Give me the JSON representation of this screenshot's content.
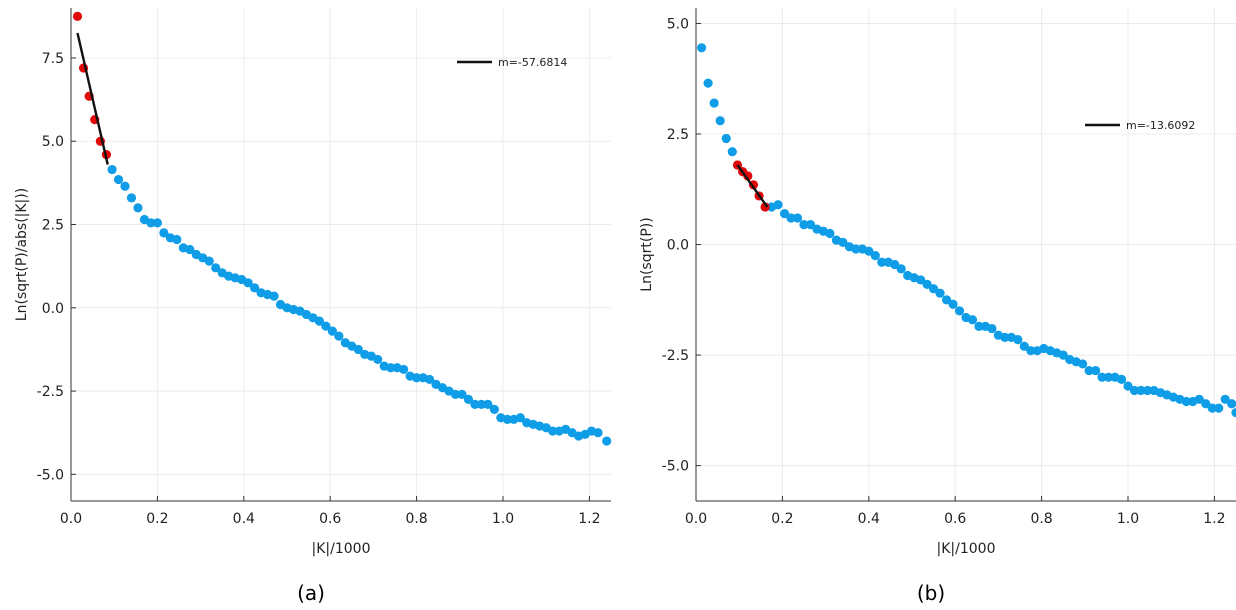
{
  "chart_data": [
    {
      "type": "scatter",
      "panel_caption": "(a)",
      "xlabel": "|K|/1000",
      "ylabel": "Ln(sqrt(P)/abs(|K|))",
      "xlim": [
        0.0,
        1.25
      ],
      "ylim": [
        -5.8,
        9.0
      ],
      "xticks": [
        0.0,
        0.2,
        0.4,
        0.6,
        0.8,
        1.0,
        1.2
      ],
      "xtick_labels": [
        "0.0",
        "0.2",
        "0.4",
        "0.6",
        "0.8",
        "1.0",
        "1.2"
      ],
      "yticks": [
        -5.0,
        -2.5,
        0.0,
        2.5,
        5.0,
        7.5
      ],
      "ytick_labels": [
        "-5.0",
        "-2.5",
        "0.0",
        "2.5",
        "5.0",
        "7.5"
      ],
      "grid": true,
      "legend_position": "top-right",
      "colors": {
        "blue": "#0f9de8",
        "red": "#e0090a",
        "fit": "#111111"
      },
      "series": [
        {
          "role": "blue",
          "points": [
            [
              0.095,
              4.15
            ],
            [
              0.11,
              3.85
            ],
            [
              0.125,
              3.65
            ],
            [
              0.14,
              3.3
            ],
            [
              0.155,
              3.0
            ],
            [
              0.17,
              2.65
            ],
            [
              0.185,
              2.55
            ],
            [
              0.2,
              2.55
            ],
            [
              0.215,
              2.25
            ],
            [
              0.23,
              2.1
            ],
            [
              0.245,
              2.05
            ],
            [
              0.26,
              1.8
            ],
            [
              0.275,
              1.75
            ],
            [
              0.29,
              1.6
            ],
            [
              0.305,
              1.5
            ],
            [
              0.32,
              1.4
            ],
            [
              0.335,
              1.2
            ],
            [
              0.35,
              1.05
            ],
            [
              0.365,
              0.95
            ],
            [
              0.38,
              0.9
            ],
            [
              0.395,
              0.85
            ],
            [
              0.41,
              0.75
            ],
            [
              0.425,
              0.6
            ],
            [
              0.44,
              0.45
            ],
            [
              0.455,
              0.4
            ],
            [
              0.47,
              0.35
            ],
            [
              0.485,
              0.1
            ],
            [
              0.5,
              0.0
            ],
            [
              0.515,
              -0.05
            ],
            [
              0.53,
              -0.1
            ],
            [
              0.545,
              -0.2
            ],
            [
              0.56,
              -0.3
            ],
            [
              0.575,
              -0.4
            ],
            [
              0.59,
              -0.55
            ],
            [
              0.605,
              -0.7
            ],
            [
              0.62,
              -0.85
            ],
            [
              0.635,
              -1.05
            ],
            [
              0.65,
              -1.15
            ],
            [
              0.665,
              -1.25
            ],
            [
              0.68,
              -1.4
            ],
            [
              0.695,
              -1.45
            ],
            [
              0.71,
              -1.55
            ],
            [
              0.725,
              -1.75
            ],
            [
              0.74,
              -1.8
            ],
            [
              0.755,
              -1.8
            ],
            [
              0.77,
              -1.85
            ],
            [
              0.785,
              -2.05
            ],
            [
              0.8,
              -2.1
            ],
            [
              0.815,
              -2.1
            ],
            [
              0.83,
              -2.15
            ],
            [
              0.845,
              -2.3
            ],
            [
              0.86,
              -2.4
            ],
            [
              0.875,
              -2.5
            ],
            [
              0.89,
              -2.6
            ],
            [
              0.905,
              -2.6
            ],
            [
              0.92,
              -2.75
            ],
            [
              0.935,
              -2.9
            ],
            [
              0.95,
              -2.9
            ],
            [
              0.965,
              -2.9
            ],
            [
              0.98,
              -3.05
            ],
            [
              0.995,
              -3.3
            ],
            [
              1.01,
              -3.35
            ],
            [
              1.025,
              -3.35
            ],
            [
              1.04,
              -3.3
            ],
            [
              1.055,
              -3.45
            ],
            [
              1.07,
              -3.5
            ],
            [
              1.085,
              -3.55
            ],
            [
              1.1,
              -3.6
            ],
            [
              1.115,
              -3.7
            ],
            [
              1.13,
              -3.7
            ],
            [
              1.145,
              -3.65
            ],
            [
              1.16,
              -3.75
            ],
            [
              1.175,
              -3.85
            ],
            [
              1.19,
              -3.8
            ],
            [
              1.205,
              -3.7
            ],
            [
              1.22,
              -3.75
            ],
            [
              1.24,
              -4.0
            ]
          ]
        },
        {
          "role": "red",
          "points": [
            [
              0.015,
              8.75
            ],
            [
              0.029,
              7.2
            ],
            [
              0.042,
              6.35
            ],
            [
              0.055,
              5.65
            ],
            [
              0.068,
              5.0
            ],
            [
              0.082,
              4.6
            ]
          ]
        },
        {
          "role": "fit",
          "name": "m=-57.6814",
          "line": [
            [
              0.015,
              8.25
            ],
            [
              0.085,
              4.3
            ]
          ]
        }
      ]
    },
    {
      "type": "scatter",
      "panel_caption": "(b)",
      "xlabel": "|K|/1000",
      "ylabel": "Ln(sqrt(P))",
      "xlim": [
        0.0,
        1.25
      ],
      "ylim": [
        -5.8,
        5.35
      ],
      "xticks": [
        0.0,
        0.2,
        0.4,
        0.6,
        0.8,
        1.0,
        1.2
      ],
      "xtick_labels": [
        "0.0",
        "0.2",
        "0.4",
        "0.6",
        "0.8",
        "1.0",
        "1.2"
      ],
      "yticks": [
        -5.0,
        -2.5,
        0.0,
        2.5,
        5.0
      ],
      "ytick_labels": [
        "-5.0",
        "-2.5",
        "0.0",
        "2.5",
        "5.0"
      ],
      "grid": true,
      "legend_position": "top-right",
      "colors": {
        "blue": "#0f9de8",
        "red": "#e0090a",
        "fit": "#111111"
      },
      "series": [
        {
          "role": "blue",
          "points": [
            [
              0.013,
              4.45
            ],
            [
              0.028,
              3.65
            ],
            [
              0.042,
              3.2
            ],
            [
              0.056,
              2.8
            ],
            [
              0.07,
              2.4
            ],
            [
              0.084,
              2.1
            ],
            [
              0.175,
              0.85
            ],
            [
              0.19,
              0.9
            ],
            [
              0.205,
              0.7
            ],
            [
              0.22,
              0.6
            ],
            [
              0.235,
              0.6
            ],
            [
              0.25,
              0.45
            ],
            [
              0.265,
              0.45
            ],
            [
              0.28,
              0.35
            ],
            [
              0.295,
              0.3
            ],
            [
              0.31,
              0.25
            ],
            [
              0.325,
              0.1
            ],
            [
              0.34,
              0.05
            ],
            [
              0.355,
              -0.05
            ],
            [
              0.37,
              -0.1
            ],
            [
              0.385,
              -0.1
            ],
            [
              0.4,
              -0.15
            ],
            [
              0.415,
              -0.25
            ],
            [
              0.43,
              -0.4
            ],
            [
              0.445,
              -0.4
            ],
            [
              0.46,
              -0.45
            ],
            [
              0.475,
              -0.55
            ],
            [
              0.49,
              -0.7
            ],
            [
              0.505,
              -0.75
            ],
            [
              0.52,
              -0.8
            ],
            [
              0.535,
              -0.9
            ],
            [
              0.55,
              -1.0
            ],
            [
              0.565,
              -1.1
            ],
            [
              0.58,
              -1.25
            ],
            [
              0.595,
              -1.35
            ],
            [
              0.61,
              -1.5
            ],
            [
              0.625,
              -1.65
            ],
            [
              0.64,
              -1.7
            ],
            [
              0.655,
              -1.85
            ],
            [
              0.67,
              -1.85
            ],
            [
              0.685,
              -1.9
            ],
            [
              0.7,
              -2.05
            ],
            [
              0.715,
              -2.1
            ],
            [
              0.73,
              -2.1
            ],
            [
              0.745,
              -2.15
            ],
            [
              0.76,
              -2.3
            ],
            [
              0.775,
              -2.4
            ],
            [
              0.79,
              -2.4
            ],
            [
              0.805,
              -2.35
            ],
            [
              0.82,
              -2.4
            ],
            [
              0.835,
              -2.45
            ],
            [
              0.85,
              -2.5
            ],
            [
              0.865,
              -2.6
            ],
            [
              0.88,
              -2.65
            ],
            [
              0.895,
              -2.7
            ],
            [
              0.91,
              -2.85
            ],
            [
              0.925,
              -2.85
            ],
            [
              0.94,
              -3.0
            ],
            [
              0.955,
              -3.0
            ],
            [
              0.97,
              -3.0
            ],
            [
              0.985,
              -3.05
            ],
            [
              1.0,
              -3.2
            ],
            [
              1.015,
              -3.3
            ],
            [
              1.03,
              -3.3
            ],
            [
              1.045,
              -3.3
            ],
            [
              1.06,
              -3.3
            ],
            [
              1.075,
              -3.35
            ],
            [
              1.09,
              -3.4
            ],
            [
              1.105,
              -3.45
            ],
            [
              1.12,
              -3.5
            ],
            [
              1.135,
              -3.55
            ],
            [
              1.15,
              -3.55
            ],
            [
              1.165,
              -3.5
            ],
            [
              1.18,
              -3.6
            ],
            [
              1.195,
              -3.7
            ],
            [
              1.21,
              -3.7
            ],
            [
              1.225,
              -3.5
            ],
            [
              1.24,
              -3.6
            ],
            [
              1.25,
              -3.8
            ]
          ]
        },
        {
          "role": "red",
          "points": [
            [
              0.096,
              1.8
            ],
            [
              0.108,
              1.65
            ],
            [
              0.12,
              1.55
            ],
            [
              0.133,
              1.35
            ],
            [
              0.146,
              1.1
            ],
            [
              0.16,
              0.85
            ]
          ]
        },
        {
          "role": "fit",
          "name": "m=-13.6092",
          "line": [
            [
              0.096,
              1.8
            ],
            [
              0.165,
              0.85
            ]
          ]
        }
      ]
    }
  ]
}
